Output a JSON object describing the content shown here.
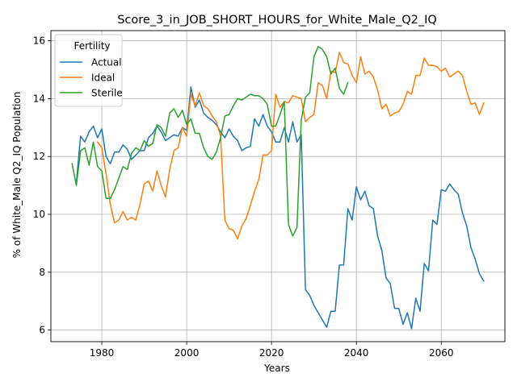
{
  "chart_data": {
    "type": "line",
    "title": "Score_3_in_JOB_SHORT_HOURS_for_White_Male_Q2_IQ",
    "xlabel": "Years",
    "ylabel": "% of White_Male Q2_IQ Population",
    "xlim": [
      1968,
      2075
    ],
    "ylim": [
      5.6,
      16.35
    ],
    "xticks": [
      1980,
      2000,
      2020,
      2040,
      2060
    ],
    "yticks": [
      6,
      8,
      10,
      12,
      14,
      16
    ],
    "grid": true,
    "legend": {
      "title": "Fertility",
      "placement": "top-left"
    },
    "series": [
      {
        "name": "Actual",
        "color": "#1f77b4",
        "points": [
          [
            1974,
            11.1
          ],
          [
            1975,
            12.7
          ],
          [
            1976,
            12.5
          ],
          [
            1977,
            12.85
          ],
          [
            1978,
            13.05
          ],
          [
            1979,
            12.65
          ],
          [
            1980,
            12.95
          ],
          [
            1981,
            12.0
          ],
          [
            1982,
            11.75
          ],
          [
            1983,
            12.15
          ],
          [
            1984,
            12.15
          ],
          [
            1985,
            12.4
          ],
          [
            1986,
            12.25
          ],
          [
            1987,
            11.9
          ],
          [
            1988,
            12.05
          ],
          [
            1989,
            12.2
          ],
          [
            1990,
            12.2
          ],
          [
            1991,
            12.65
          ],
          [
            1992,
            12.8
          ],
          [
            1993,
            13.05
          ],
          [
            1994,
            12.85
          ],
          [
            1995,
            12.55
          ],
          [
            1996,
            12.65
          ],
          [
            1997,
            12.75
          ],
          [
            1998,
            12.7
          ],
          [
            1999,
            13.0
          ],
          [
            2000,
            12.9
          ],
          [
            2001,
            14.4
          ],
          [
            2002,
            13.7
          ],
          [
            2003,
            13.95
          ],
          [
            2004,
            13.5
          ],
          [
            2005,
            13.35
          ],
          [
            2006,
            13.25
          ],
          [
            2007,
            13.1
          ],
          [
            2008,
            12.85
          ],
          [
            2009,
            12.65
          ],
          [
            2010,
            12.95
          ],
          [
            2011,
            12.7
          ],
          [
            2012,
            12.55
          ],
          [
            2013,
            12.2
          ],
          [
            2014,
            12.3
          ],
          [
            2015,
            12.35
          ],
          [
            2016,
            13.3
          ],
          [
            2017,
            13.05
          ],
          [
            2018,
            13.45
          ],
          [
            2019,
            13.05
          ],
          [
            2020,
            12.85
          ],
          [
            2021,
            12.5
          ],
          [
            2022,
            12.5
          ],
          [
            2023,
            13.0
          ],
          [
            2024,
            12.5
          ],
          [
            2025,
            13.2
          ],
          [
            2026,
            12.5
          ],
          [
            2027,
            12.75
          ],
          [
            2028,
            7.4
          ],
          [
            2029,
            7.2
          ],
          [
            2030,
            6.85
          ],
          [
            2031,
            6.6
          ],
          [
            2032,
            6.35
          ],
          [
            2033,
            6.1
          ],
          [
            2034,
            6.65
          ],
          [
            2035,
            6.65
          ],
          [
            2036,
            8.25
          ],
          [
            2037,
            8.25
          ],
          [
            2038,
            10.2
          ],
          [
            2039,
            9.8
          ],
          [
            2040,
            10.95
          ],
          [
            2041,
            10.5
          ],
          [
            2042,
            10.8
          ],
          [
            2043,
            10.3
          ],
          [
            2044,
            10.2
          ],
          [
            2045,
            9.25
          ],
          [
            2046,
            8.75
          ],
          [
            2047,
            7.8
          ],
          [
            2048,
            7.6
          ],
          [
            2049,
            6.75
          ],
          [
            2050,
            6.75
          ],
          [
            2051,
            6.2
          ],
          [
            2052,
            6.6
          ],
          [
            2053,
            6.05
          ],
          [
            2054,
            7.1
          ],
          [
            2055,
            6.65
          ],
          [
            2056,
            8.3
          ],
          [
            2057,
            8.05
          ],
          [
            2058,
            9.8
          ],
          [
            2059,
            9.65
          ],
          [
            2060,
            10.85
          ],
          [
            2061,
            10.8
          ],
          [
            2062,
            11.05
          ],
          [
            2063,
            10.85
          ],
          [
            2064,
            10.7
          ],
          [
            2065,
            10.05
          ],
          [
            2066,
            9.6
          ],
          [
            2067,
            8.85
          ],
          [
            2068,
            8.45
          ],
          [
            2069,
            7.95
          ],
          [
            2070,
            7.7
          ]
        ]
      },
      {
        "name": "Ideal",
        "color": "#ff7f0e",
        "points": [
          [
            1979,
            12.5
          ],
          [
            1980,
            12.3
          ],
          [
            1981,
            11.4
          ],
          [
            1982,
            10.35
          ],
          [
            1983,
            9.7
          ],
          [
            1984,
            9.8
          ],
          [
            1985,
            10.1
          ],
          [
            1986,
            9.8
          ],
          [
            1987,
            9.9
          ],
          [
            1988,
            9.8
          ],
          [
            1989,
            10.35
          ],
          [
            1990,
            11.05
          ],
          [
            1991,
            11.15
          ],
          [
            1992,
            10.8
          ],
          [
            1993,
            11.5
          ],
          [
            1994,
            11.0
          ],
          [
            1995,
            10.6
          ],
          [
            1996,
            11.55
          ],
          [
            1997,
            12.2
          ],
          [
            1998,
            12.3
          ],
          [
            1999,
            13.0
          ],
          [
            2000,
            12.7
          ],
          [
            2001,
            14.15
          ],
          [
            2002,
            13.75
          ],
          [
            2003,
            14.2
          ],
          [
            2004,
            13.75
          ],
          [
            2005,
            13.65
          ],
          [
            2006,
            13.4
          ],
          [
            2007,
            13.2
          ],
          [
            2008,
            12.7
          ],
          [
            2009,
            9.8
          ],
          [
            2010,
            9.5
          ],
          [
            2011,
            9.45
          ],
          [
            2012,
            9.15
          ],
          [
            2013,
            9.6
          ],
          [
            2014,
            9.85
          ],
          [
            2015,
            10.3
          ],
          [
            2016,
            10.8
          ],
          [
            2017,
            11.2
          ],
          [
            2018,
            12.05
          ],
          [
            2019,
            12.05
          ],
          [
            2020,
            12.2
          ],
          [
            2021,
            14.15
          ],
          [
            2022,
            13.7
          ],
          [
            2023,
            13.9
          ],
          [
            2024,
            13.85
          ],
          [
            2025,
            14.1
          ],
          [
            2026,
            14.05
          ],
          [
            2027,
            14.0
          ],
          [
            2028,
            13.2
          ],
          [
            2029,
            13.35
          ],
          [
            2030,
            13.45
          ],
          [
            2031,
            14.55
          ],
          [
            2032,
            14.45
          ],
          [
            2033,
            14.0
          ],
          [
            2034,
            14.95
          ],
          [
            2035,
            14.9
          ],
          [
            2036,
            15.6
          ],
          [
            2037,
            15.25
          ],
          [
            2038,
            15.2
          ],
          [
            2039,
            14.8
          ],
          [
            2040,
            14.55
          ],
          [
            2041,
            15.45
          ],
          [
            2042,
            14.85
          ],
          [
            2043,
            14.95
          ],
          [
            2044,
            14.75
          ],
          [
            2045,
            14.3
          ],
          [
            2046,
            13.65
          ],
          [
            2047,
            13.8
          ],
          [
            2048,
            13.4
          ],
          [
            2049,
            13.5
          ],
          [
            2050,
            13.55
          ],
          [
            2051,
            13.8
          ],
          [
            2052,
            14.25
          ],
          [
            2053,
            14.15
          ],
          [
            2054,
            14.8
          ],
          [
            2055,
            14.8
          ],
          [
            2056,
            15.4
          ],
          [
            2057,
            15.15
          ],
          [
            2058,
            15.15
          ],
          [
            2059,
            15.1
          ],
          [
            2060,
            14.95
          ],
          [
            2061,
            15.05
          ],
          [
            2062,
            14.75
          ],
          [
            2063,
            14.85
          ],
          [
            2064,
            14.95
          ],
          [
            2065,
            14.8
          ],
          [
            2066,
            14.25
          ],
          [
            2067,
            13.8
          ],
          [
            2068,
            13.85
          ],
          [
            2069,
            13.45
          ],
          [
            2070,
            13.85
          ]
        ]
      },
      {
        "name": "Sterile",
        "color": "#2ca02c",
        "points": [
          [
            1973,
            11.75
          ],
          [
            1974,
            11.0
          ],
          [
            1975,
            12.2
          ],
          [
            1976,
            12.3
          ],
          [
            1977,
            11.7
          ],
          [
            1978,
            12.5
          ],
          [
            1979,
            11.65
          ],
          [
            1980,
            11.5
          ],
          [
            1981,
            10.55
          ],
          [
            1982,
            10.55
          ],
          [
            1983,
            10.85
          ],
          [
            1984,
            11.25
          ],
          [
            1985,
            11.65
          ],
          [
            1986,
            11.55
          ],
          [
            1987,
            12.1
          ],
          [
            1988,
            12.3
          ],
          [
            1989,
            12.2
          ],
          [
            1990,
            12.55
          ],
          [
            1991,
            12.35
          ],
          [
            1992,
            12.45
          ],
          [
            1993,
            13.1
          ],
          [
            1994,
            13.0
          ],
          [
            1995,
            12.7
          ],
          [
            1996,
            13.5
          ],
          [
            1997,
            13.65
          ],
          [
            1998,
            13.35
          ],
          [
            1999,
            13.6
          ],
          [
            2000,
            13.1
          ],
          [
            2001,
            13.3
          ],
          [
            2002,
            12.8
          ],
          [
            2003,
            12.8
          ],
          [
            2004,
            12.3
          ],
          [
            2005,
            12.0
          ],
          [
            2006,
            11.9
          ],
          [
            2007,
            12.15
          ],
          [
            2008,
            12.65
          ],
          [
            2009,
            13.4
          ],
          [
            2010,
            13.45
          ],
          [
            2011,
            13.75
          ],
          [
            2012,
            14.0
          ],
          [
            2013,
            13.95
          ],
          [
            2014,
            14.05
          ],
          [
            2015,
            14.15
          ],
          [
            2016,
            14.1
          ],
          [
            2017,
            14.1
          ],
          [
            2018,
            14.0
          ],
          [
            2019,
            13.8
          ],
          [
            2020,
            13.05
          ],
          [
            2021,
            13.05
          ],
          [
            2022,
            13.45
          ],
          [
            2023,
            13.9
          ],
          [
            2024,
            9.65
          ],
          [
            2025,
            9.25
          ],
          [
            2026,
            9.55
          ],
          [
            2027,
            13.25
          ],
          [
            2028,
            14.05
          ],
          [
            2029,
            14.2
          ],
          [
            2030,
            15.45
          ],
          [
            2031,
            15.8
          ],
          [
            2032,
            15.7
          ],
          [
            2033,
            15.45
          ],
          [
            2034,
            14.85
          ],
          [
            2035,
            15.05
          ],
          [
            2036,
            14.35
          ],
          [
            2037,
            14.15
          ],
          [
            2038,
            14.55
          ]
        ]
      }
    ]
  }
}
